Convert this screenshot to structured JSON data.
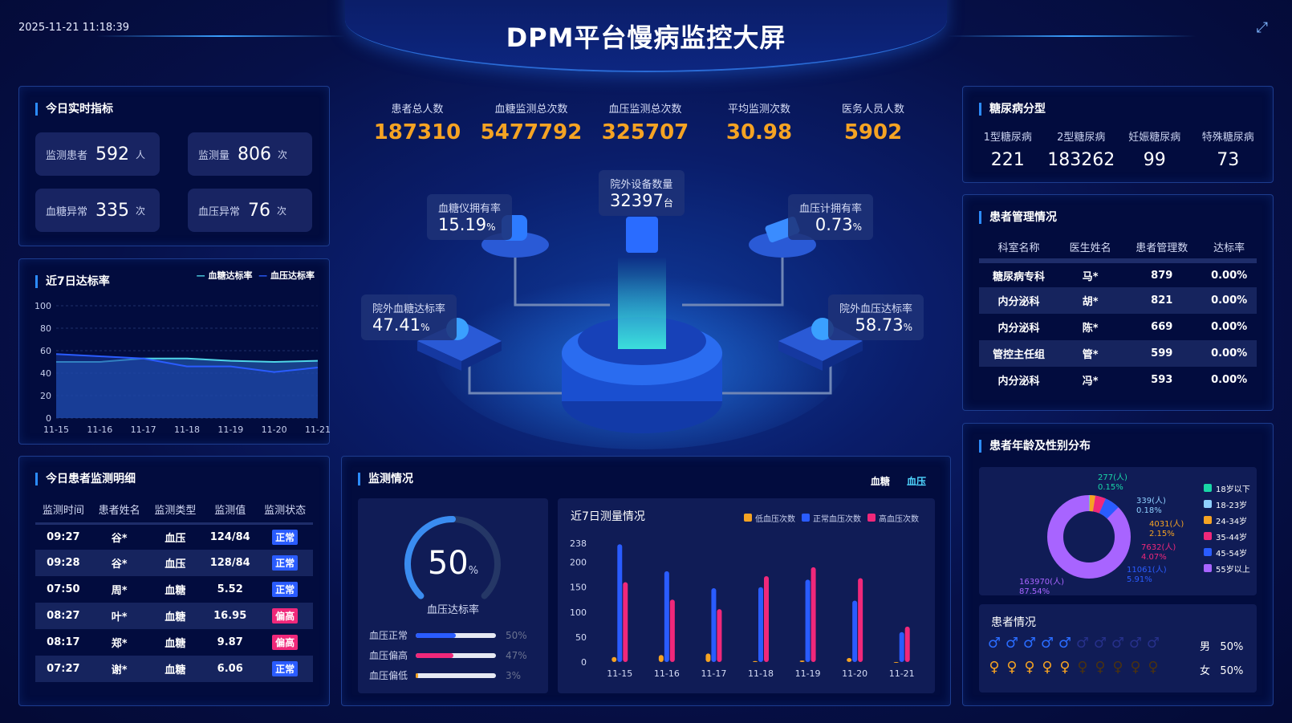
{
  "header": {
    "title": "DPM平台慢病监控大屏",
    "datetime": "2025-11-21 11:18:39"
  },
  "today": {
    "title": "今日实时指标",
    "kpis": [
      {
        "label": "监测患者",
        "value": "592",
        "unit": "人"
      },
      {
        "label": "监测量",
        "value": "806",
        "unit": "次"
      },
      {
        "label": "血糖异常",
        "value": "335",
        "unit": "次"
      },
      {
        "label": "血压异常",
        "value": "76",
        "unit": "次"
      }
    ]
  },
  "rate7": {
    "title": "近7日达标率",
    "legend": [
      "血糖达标率",
      "血压达标率"
    ],
    "colors": [
      "#4fd6e8",
      "#2a5cff"
    ],
    "x": [
      "11-15",
      "11-16",
      "11-17",
      "11-18",
      "11-19",
      "11-20",
      "11-21"
    ],
    "yticks": [
      "0",
      "20",
      "40",
      "60",
      "80",
      "100"
    ],
    "series": [
      [
        50,
        50,
        53,
        53,
        51,
        50,
        51
      ],
      [
        57,
        55,
        53,
        46,
        46,
        41,
        45
      ]
    ],
    "ylim": [
      0,
      100
    ]
  },
  "detail": {
    "title": "今日患者监测明细",
    "headers": [
      "监测时间",
      "患者姓名",
      "监测类型",
      "监测值",
      "监测状态"
    ],
    "rows": [
      [
        "09:27",
        "谷*",
        "血压",
        "124/84",
        "正常"
      ],
      [
        "09:28",
        "谷*",
        "血压",
        "128/84",
        "正常"
      ],
      [
        "07:50",
        "周*",
        "血糖",
        "5.52",
        "正常"
      ],
      [
        "08:27",
        "叶*",
        "血糖",
        "16.95",
        "偏高"
      ],
      [
        "08:17",
        "郑*",
        "血糖",
        "9.87",
        "偏高"
      ],
      [
        "07:27",
        "谢*",
        "血糖",
        "6.06",
        "正常"
      ]
    ]
  },
  "stats": [
    {
      "label": "患者总人数",
      "value": "187310"
    },
    {
      "label": "血糖监测总次数",
      "value": "5477792"
    },
    {
      "label": "血压监测总次数",
      "value": "325707"
    },
    {
      "label": "平均监测次数",
      "value": "30.98"
    },
    {
      "label": "医务人员人数",
      "value": "5902"
    }
  ],
  "center": {
    "device": {
      "label": "院外设备数量",
      "value": "32397",
      "unit": "台"
    },
    "glucometer": {
      "label": "血糖仪拥有率",
      "value": "15.19",
      "unit": "%"
    },
    "bpmeter": {
      "label": "血压计拥有率",
      "value": "0.73",
      "unit": "%"
    },
    "bg_rate": {
      "label": "院外血糖达标率",
      "value": "47.41",
      "unit": "%"
    },
    "bp_rate": {
      "label": "院外血压达标率",
      "value": "58.73",
      "unit": "%"
    }
  },
  "monitor": {
    "title": "监测情况",
    "tabs": [
      "血糖",
      "血压"
    ],
    "gauge": {
      "value": "50",
      "unit": "%",
      "label": "血压达标率",
      "percent": 50
    },
    "bars": [
      {
        "label": "血压正常",
        "value": "50%",
        "pct": 50,
        "color": "#2a5cff"
      },
      {
        "label": "血压偏高",
        "value": "47%",
        "pct": 47,
        "color": "#f0287a"
      },
      {
        "label": "血压偏低",
        "value": "3%",
        "pct": 3,
        "color": "#f5a323"
      }
    ]
  },
  "chart_data": {
    "type": "bar",
    "title": "近7日测量情况",
    "categories": [
      "11-15",
      "11-16",
      "11-17",
      "11-18",
      "11-19",
      "11-20",
      "11-21"
    ],
    "yticks": [
      "0",
      "50",
      "100",
      "150",
      "200",
      "238"
    ],
    "ylim": [
      0,
      238
    ],
    "series": [
      {
        "name": "低血压次数",
        "color": "#f5a323",
        "values": [
          10,
          14,
          17,
          2,
          3,
          8,
          0
        ]
      },
      {
        "name": "正常血压次数",
        "color": "#2a5cff",
        "values": [
          236,
          182,
          148,
          150,
          165,
          123,
          60
        ]
      },
      {
        "name": "高血压次数",
        "color": "#f0287a",
        "values": [
          160,
          125,
          106,
          172,
          190,
          168,
          71
        ]
      }
    ]
  },
  "diabetes": {
    "title": "糖尿病分型",
    "items": [
      {
        "label": "1型糖尿病",
        "value": "221"
      },
      {
        "label": "2型糖尿病",
        "value": "183262"
      },
      {
        "label": "妊娠糖尿病",
        "value": "99"
      },
      {
        "label": "特殊糖尿病",
        "value": "73"
      }
    ]
  },
  "manage": {
    "title": "患者管理情况",
    "headers": [
      "科室名称",
      "医生姓名",
      "患者管理数",
      "达标率"
    ],
    "rows": [
      [
        "糖尿病专科",
        "马*",
        "879",
        "0.00%"
      ],
      [
        "内分泌科",
        "胡*",
        "821",
        "0.00%"
      ],
      [
        "内分泌科",
        "陈*",
        "669",
        "0.00%"
      ],
      [
        "管控主任组",
        "管*",
        "599",
        "0.00%"
      ],
      [
        "内分泌科",
        "冯*",
        "593",
        "0.00%"
      ]
    ]
  },
  "age": {
    "title": "患者年龄及性别分布",
    "slices": [
      {
        "name": "18岁以下",
        "count": "277(人)",
        "pct": "0.15%",
        "value": 277,
        "color": "#19d6a6"
      },
      {
        "name": "18-23岁",
        "count": "339(人)",
        "pct": "0.18%",
        "value": 339,
        "color": "#8fd0ff"
      },
      {
        "name": "24-34岁",
        "count": "4031(人)",
        "pct": "2.15%",
        "value": 4031,
        "color": "#f5a323"
      },
      {
        "name": "35-44岁",
        "count": "7632(人)",
        "pct": "4.07%",
        "value": 7632,
        "color": "#f0287a"
      },
      {
        "name": "45-54岁",
        "count": "11061(人)",
        "pct": "5.91%",
        "value": 11061,
        "color": "#2a5cff"
      },
      {
        "name": "55岁以上",
        "count": "163970(人)",
        "pct": "87.54%",
        "value": 163970,
        "color": "#a864ff"
      }
    ]
  },
  "gender": {
    "title": "患者情况",
    "male": {
      "label": "男",
      "value": "50%",
      "filled": 5
    },
    "female": {
      "label": "女",
      "value": "50%",
      "filled": 5
    }
  }
}
